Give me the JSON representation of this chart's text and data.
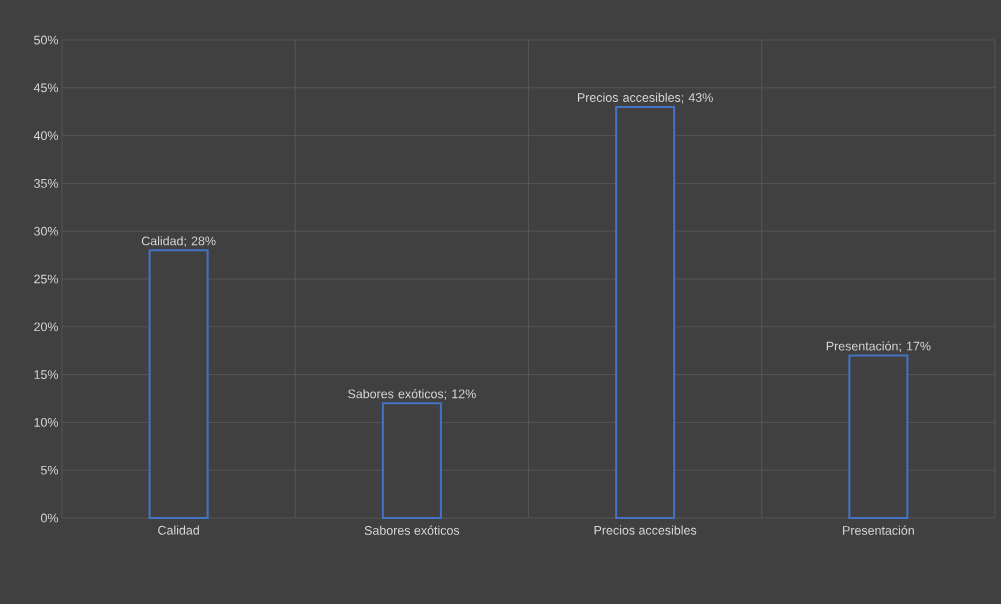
{
  "chart_data": {
    "type": "bar",
    "categories": [
      "Calidad",
      "Sabores exóticos",
      "Precios accesibles",
      "Presentación"
    ],
    "values": [
      28,
      12,
      43,
      17
    ],
    "value_labels": [
      "Calidad; 28%",
      "Sabores exóticos; 12%",
      "Precios accesibles; 43%",
      "Presentación; 17%"
    ],
    "color": "#4472c4",
    "ylim": [
      0,
      50
    ],
    "yticks": [
      {
        "value": 0,
        "label": "0%"
      },
      {
        "value": 5,
        "label": "5%"
      },
      {
        "value": 10,
        "label": "10%"
      },
      {
        "value": 15,
        "label": "15%"
      },
      {
        "value": 20,
        "label": "20%"
      },
      {
        "value": 25,
        "label": "25%"
      },
      {
        "value": 30,
        "label": "30%"
      },
      {
        "value": 35,
        "label": "35%"
      },
      {
        "value": 40,
        "label": "40%"
      },
      {
        "value": 45,
        "label": "45%"
      },
      {
        "value": 50,
        "label": "50%"
      }
    ],
    "grid": true
  }
}
